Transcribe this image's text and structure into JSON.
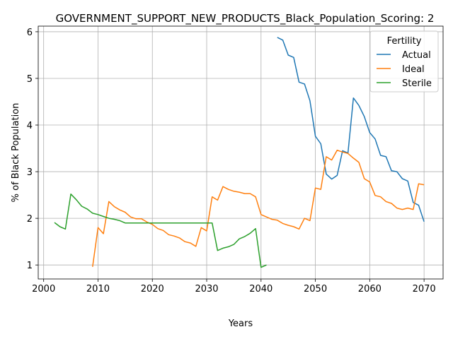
{
  "chart_data": {
    "type": "line",
    "title": "GOVERNMENT_SUPPORT_NEW_PRODUCTS_Black_Population_Scoring: 2",
    "xlabel": "Years",
    "ylabel": "% of Black Population",
    "xlim": [
      1999,
      2073.5
    ],
    "ylim": [
      0.7,
      6.12
    ],
    "xticks": [
      2000,
      2010,
      2020,
      2030,
      2040,
      2050,
      2060,
      2070
    ],
    "yticks": [
      1,
      2,
      3,
      4,
      5,
      6
    ],
    "grid": true,
    "legend": {
      "title": "Fertility",
      "position": "top-right"
    },
    "series": [
      {
        "name": "Actual",
        "color": "#1f77b4",
        "x": [
          2043,
          2044,
          2045,
          2046,
          2047,
          2048,
          2049,
          2050,
          2051,
          2052,
          2053,
          2054,
          2055,
          2056,
          2057,
          2058,
          2059,
          2060,
          2061,
          2062,
          2063,
          2064,
          2065,
          2066,
          2067,
          2068,
          2069,
          2070
        ],
        "y": [
          5.88,
          5.82,
          5.5,
          5.45,
          4.92,
          4.88,
          4.52,
          3.76,
          3.6,
          2.95,
          2.84,
          2.92,
          3.45,
          3.4,
          4.58,
          4.42,
          4.18,
          3.84,
          3.7,
          3.35,
          3.32,
          3.02,
          3.0,
          2.85,
          2.8,
          2.34,
          2.28,
          1.93
        ]
      },
      {
        "name": "Ideal",
        "color": "#ff7f0e",
        "x": [
          2009,
          2010,
          2011,
          2012,
          2013,
          2014,
          2015,
          2016,
          2017,
          2018,
          2019,
          2020,
          2021,
          2022,
          2023,
          2024,
          2025,
          2026,
          2027,
          2028,
          2029,
          2030,
          2031,
          2032,
          2033,
          2034,
          2035,
          2036,
          2037,
          2038,
          2039,
          2040,
          2041,
          2042,
          2043,
          2044,
          2045,
          2046,
          2047,
          2048,
          2049,
          2050,
          2051,
          2052,
          2053,
          2054,
          2055,
          2056,
          2057,
          2058,
          2059,
          2060,
          2061,
          2062,
          2063,
          2064,
          2065,
          2066,
          2067,
          2068,
          2069,
          2070
        ],
        "y": [
          0.96,
          1.8,
          1.67,
          2.36,
          2.25,
          2.18,
          2.13,
          2.03,
          1.99,
          1.99,
          1.92,
          1.87,
          1.78,
          1.74,
          1.65,
          1.62,
          1.58,
          1.5,
          1.47,
          1.4,
          1.8,
          1.73,
          2.46,
          2.39,
          2.68,
          2.62,
          2.58,
          2.56,
          2.53,
          2.53,
          2.46,
          2.08,
          2.03,
          1.98,
          1.96,
          1.89,
          1.85,
          1.82,
          1.77,
          2.0,
          1.95,
          2.65,
          2.62,
          3.32,
          3.25,
          3.46,
          3.42,
          3.39,
          3.29,
          3.2,
          2.85,
          2.78,
          2.49,
          2.46,
          2.36,
          2.32,
          2.22,
          2.19,
          2.22,
          2.19,
          2.74,
          2.72
        ]
      },
      {
        "name": "Sterile",
        "color": "#2ca02c",
        "x": [
          2002,
          2003,
          2004,
          2005,
          2006,
          2007,
          2008,
          2009,
          2010,
          2011,
          2012,
          2013,
          2014,
          2015,
          2016,
          2017,
          2018,
          2019,
          2020,
          2021,
          2022,
          2023,
          2024,
          2025,
          2026,
          2027,
          2028,
          2029,
          2030,
          2031,
          2032,
          2033,
          2034,
          2035,
          2036,
          2037,
          2038,
          2039,
          2040,
          2041
        ],
        "y": [
          1.91,
          1.82,
          1.77,
          2.52,
          2.4,
          2.26,
          2.2,
          2.11,
          2.08,
          2.04,
          2.0,
          1.98,
          1.95,
          1.9,
          1.9,
          1.9,
          1.9,
          1.9,
          1.9,
          1.9,
          1.9,
          1.9,
          1.9,
          1.9,
          1.9,
          1.9,
          1.9,
          1.9,
          1.9,
          1.9,
          1.31,
          1.36,
          1.39,
          1.44,
          1.56,
          1.61,
          1.68,
          1.78,
          0.95,
          1.0
        ]
      }
    ]
  }
}
